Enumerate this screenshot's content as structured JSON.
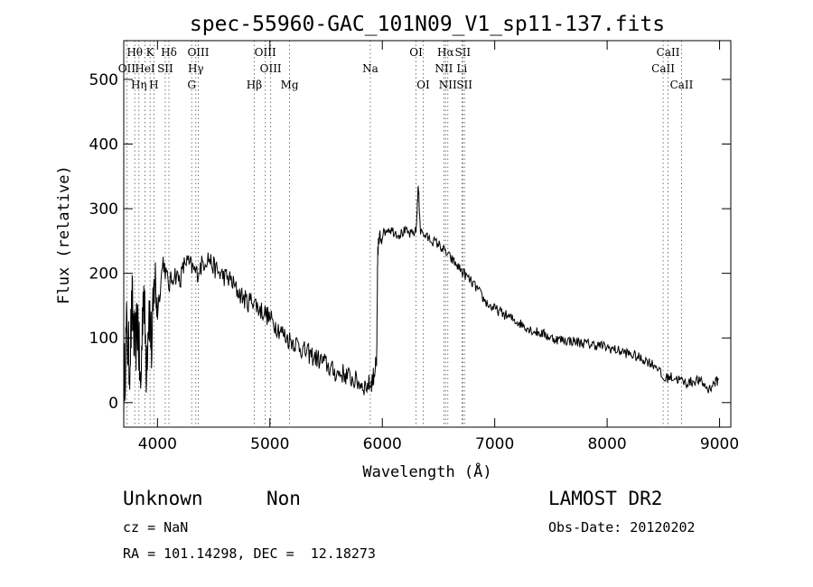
{
  "chart_data": {
    "type": "line",
    "title": "spec-55960-GAC_101N09_V1_sp11-137.fits",
    "xlabel": "Wavelength (Å)",
    "ylabel": "Flux (relative)",
    "xlim": [
      3700,
      9100
    ],
    "ylim": [
      -38,
      560
    ],
    "x_ticks": [
      4000,
      5000,
      6000,
      7000,
      8000,
      9000
    ],
    "y_ticks": [
      0,
      100,
      200,
      300,
      400,
      500
    ],
    "grid": false,
    "legend": "none",
    "series": [
      {
        "x": [
          3700,
          3725,
          3750,
          3775,
          3800,
          3825,
          3850,
          3875,
          3900,
          3925,
          3950,
          3975,
          4000,
          4050,
          4100,
          4150,
          4200,
          4250,
          4300,
          4350,
          4400,
          4450,
          4500,
          4550,
          4600,
          4650,
          4700,
          4750,
          4800,
          4850,
          4900,
          4950,
          5000,
          5050,
          5100,
          5150,
          5200,
          5250,
          5300,
          5350,
          5400,
          5450,
          5500,
          5550,
          5600,
          5650,
          5700,
          5750,
          5800,
          5850,
          5900,
          5920,
          5940,
          5950,
          5960,
          5980,
          6000,
          6050,
          6100,
          6150,
          6200,
          6250,
          6300,
          6320,
          6340,
          6400,
          6450,
          6500,
          6550,
          6600,
          6650,
          6700,
          6750,
          6800,
          6850,
          6900,
          6950,
          7000,
          7050,
          7100,
          7150,
          7200,
          7250,
          7300,
          7350,
          7400,
          7450,
          7500,
          7550,
          7600,
          7650,
          7700,
          7750,
          7800,
          7850,
          7900,
          7950,
          8000,
          8050,
          8100,
          8150,
          8200,
          8250,
          8300,
          8350,
          8400,
          8450,
          8500,
          8550,
          8600,
          8650,
          8700,
          8750,
          8800,
          8850,
          8900,
          8950,
          8990
        ],
        "y": [
          20,
          110,
          60,
          150,
          80,
          130,
          10,
          190,
          60,
          150,
          80,
          200,
          140,
          220,
          180,
          200,
          190,
          220,
          210,
          200,
          215,
          225,
          210,
          200,
          195,
          190,
          175,
          165,
          155,
          160,
          145,
          140,
          130,
          120,
          110,
          100,
          95,
          90,
          80,
          75,
          70,
          65,
          60,
          50,
          45,
          45,
          40,
          35,
          30,
          25,
          30,
          40,
          55,
          65,
          240,
          255,
          260,
          270,
          265,
          260,
          265,
          260,
          265,
          335,
          265,
          255,
          250,
          245,
          235,
          225,
          215,
          205,
          195,
          185,
          175,
          160,
          150,
          145,
          140,
          135,
          130,
          125,
          120,
          115,
          110,
          108,
          105,
          100,
          98,
          97,
          96,
          95,
          93,
          92,
          90,
          89,
          88,
          85,
          83,
          80,
          78,
          75,
          72,
          68,
          65,
          60,
          55,
          35,
          40,
          38,
          35,
          30,
          32,
          35,
          30,
          20,
          30,
          35
        ]
      }
    ],
    "lines": [
      {
        "label": "Hθ",
        "x": 3798,
        "row": 0
      },
      {
        "label": "K",
        "x": 3934,
        "row": 0
      },
      {
        "label": "Hδ",
        "x": 4102,
        "row": 0
      },
      {
        "label": "OIII",
        "x": 4363,
        "row": 0
      },
      {
        "label": "OIII",
        "x": 4959,
        "row": 0
      },
      {
        "label": "OI",
        "x": 6300,
        "row": 0
      },
      {
        "label": "Hα",
        "x": 6563,
        "row": 0
      },
      {
        "label": "SII",
        "x": 6716,
        "row": 0
      },
      {
        "label": "CaII",
        "x": 8542,
        "row": 0
      },
      {
        "label": "OII",
        "x": 3727,
        "row": 1
      },
      {
        "label": "HeI",
        "x": 3889,
        "row": 1
      },
      {
        "label": "SII",
        "x": 4069,
        "row": 1
      },
      {
        "label": "Hγ",
        "x": 4341,
        "row": 1
      },
      {
        "label": "OIII",
        "x": 5007,
        "row": 1
      },
      {
        "label": "Na",
        "x": 5893,
        "row": 1
      },
      {
        "label": "NII",
        "x": 6548,
        "row": 1
      },
      {
        "label": "Li",
        "x": 6708,
        "row": 1
      },
      {
        "label": "CaII",
        "x": 8498,
        "row": 1
      },
      {
        "label": "Hη",
        "x": 3835,
        "row": 2
      },
      {
        "label": "H",
        "x": 3968,
        "row": 2
      },
      {
        "label": "G",
        "x": 4304,
        "row": 2
      },
      {
        "label": "Hβ",
        "x": 4861,
        "row": 2
      },
      {
        "label": "Mg",
        "x": 5175,
        "row": 2
      },
      {
        "label": "OI",
        "x": 6364,
        "row": 2
      },
      {
        "label": "NII",
        "x": 6583,
        "row": 2
      },
      {
        "label": "SII",
        "x": 6731,
        "row": 2
      },
      {
        "label": "CaII",
        "x": 8662,
        "row": 2
      }
    ]
  },
  "info": {
    "class": "Unknown",
    "subclass": "Non",
    "cz": "cz = NaN",
    "radec": "RA = 101.14298, DEC =  12.18273",
    "survey": "LAMOST DR2",
    "obsdate": "Obs-Date: 20120202"
  }
}
